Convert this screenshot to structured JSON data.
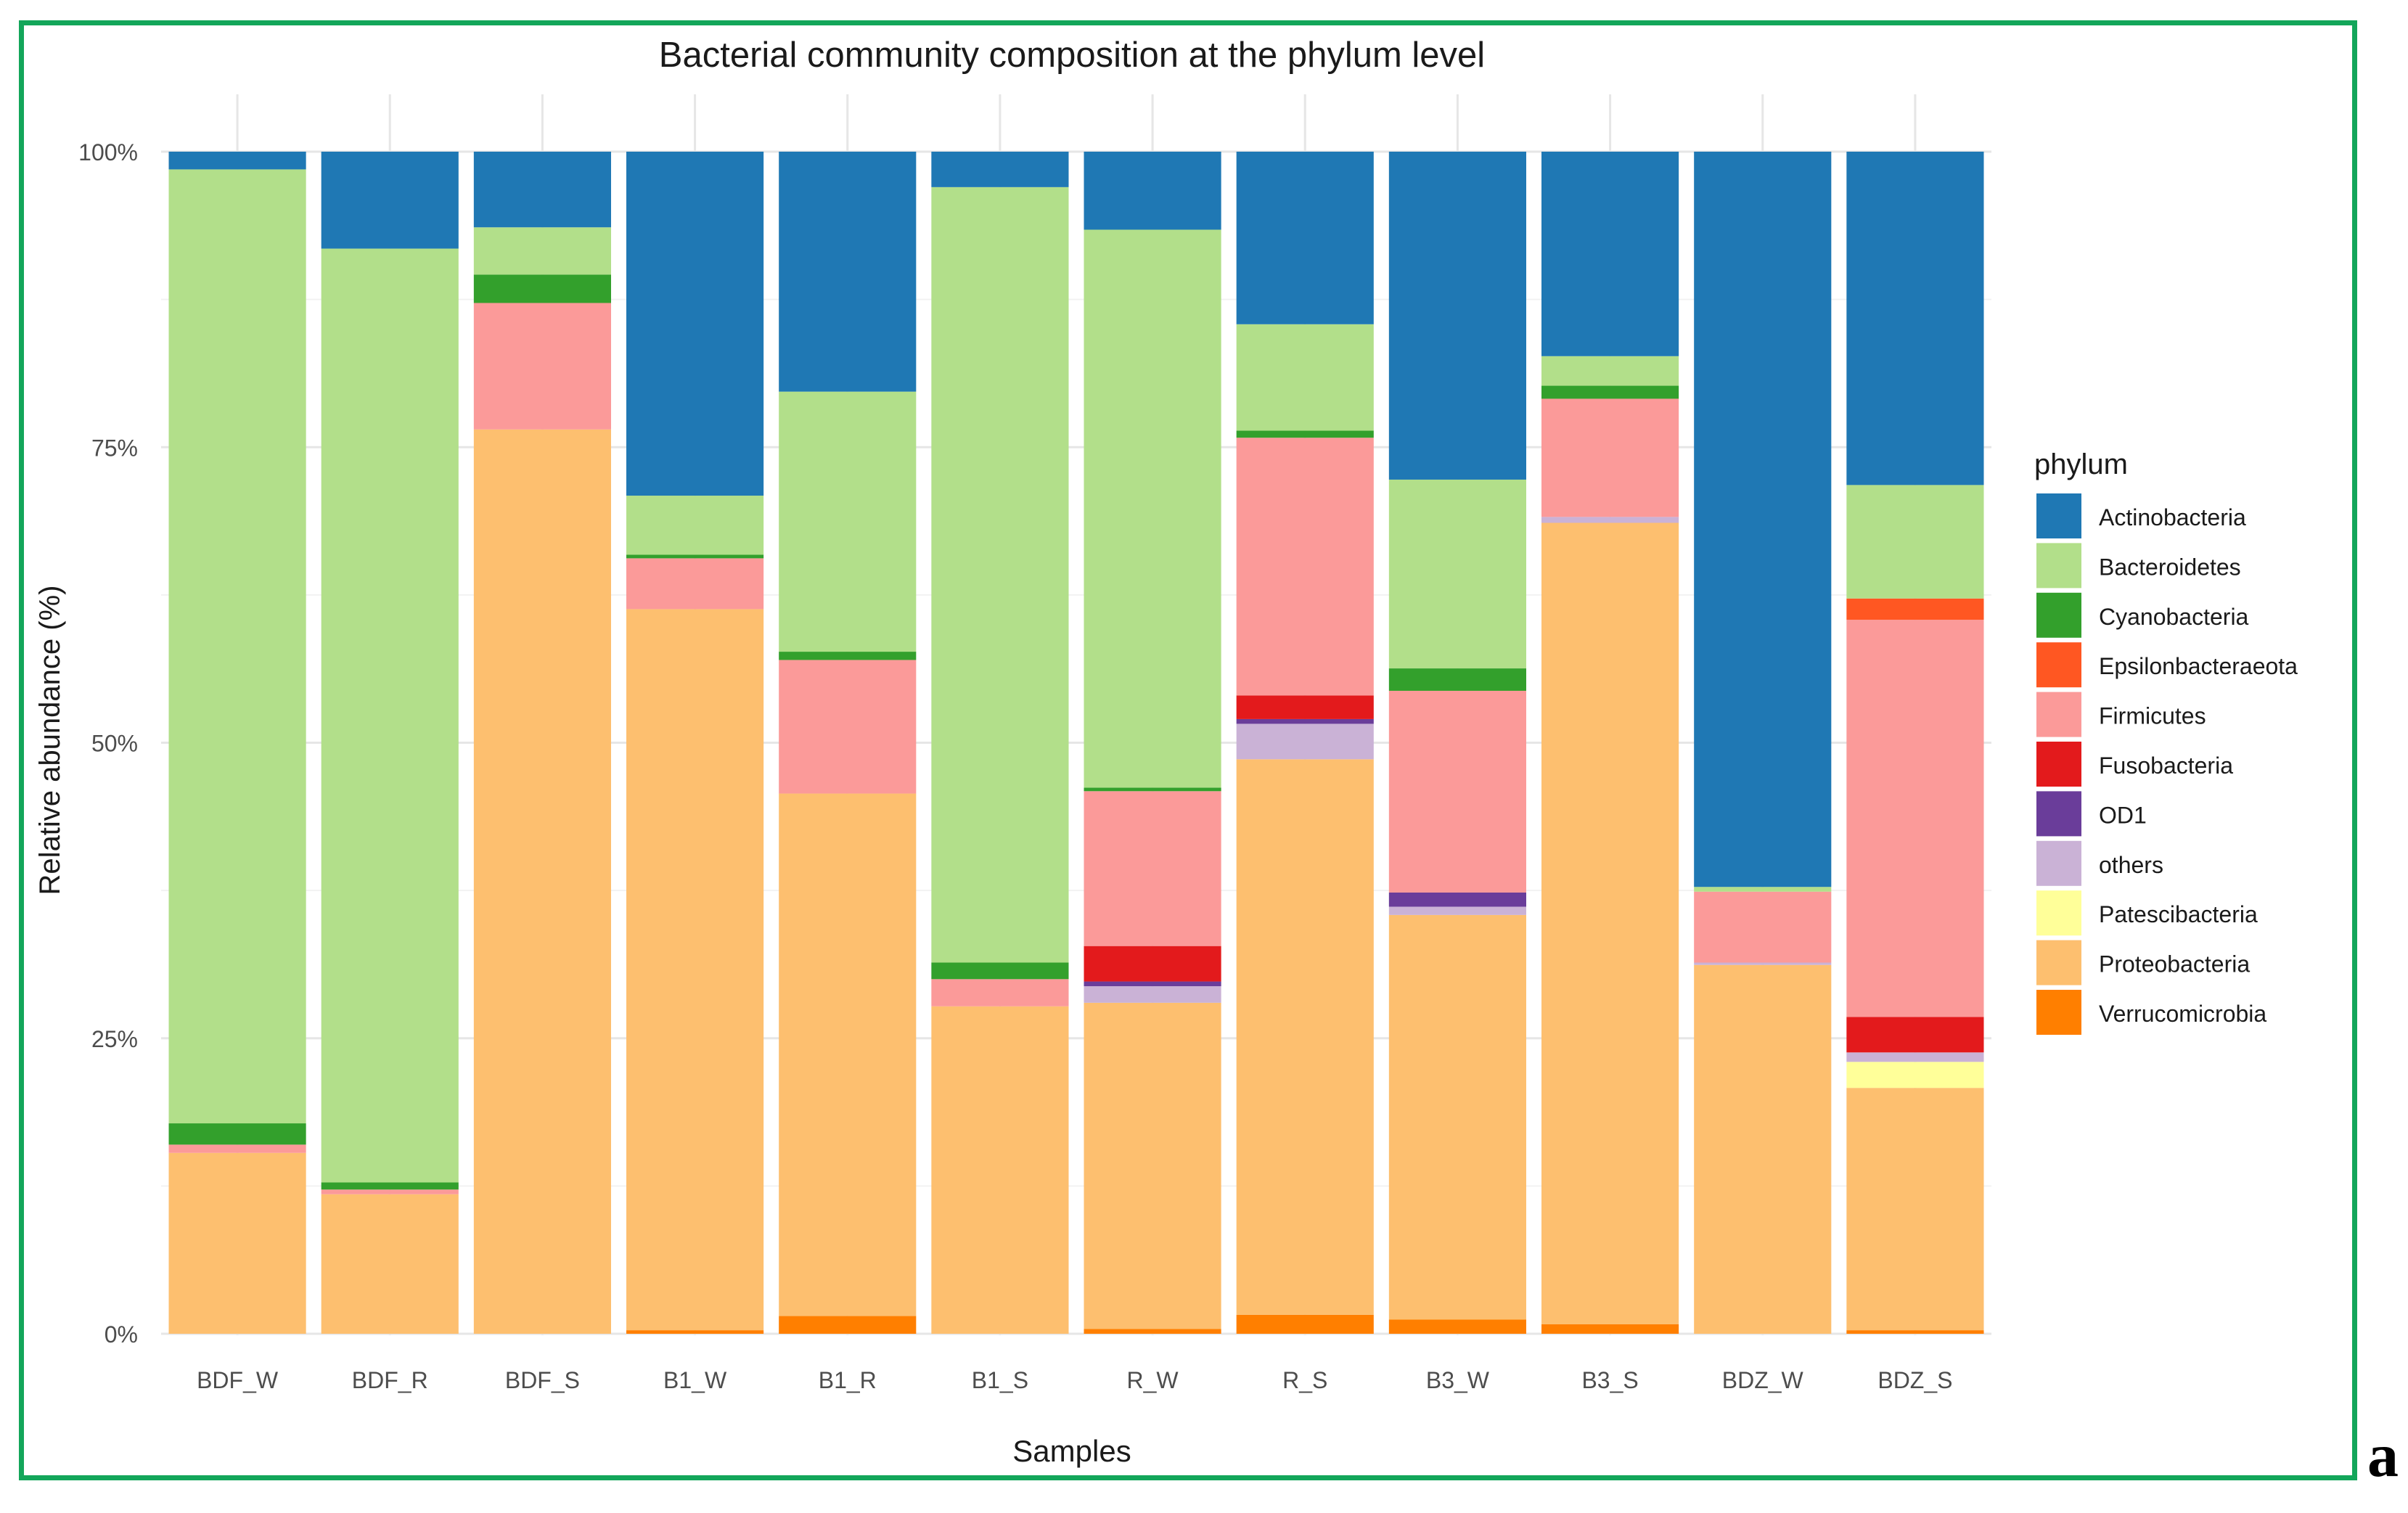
{
  "figure_label": "a",
  "chart_data": {
    "type": "bar",
    "stacked": true,
    "title": "Bacterial community composition at the phylum level",
    "xlabel": "Samples",
    "ylabel": "Relative abundance (%)",
    "ylim": [
      0,
      100
    ],
    "y_ticks": [
      0,
      25,
      50,
      75,
      100
    ],
    "y_tick_labels": [
      "0%",
      "25%",
      "50%",
      "75%",
      "100%"
    ],
    "legend": {
      "title": "phylum",
      "position": "right"
    },
    "categories": [
      "BDF_W",
      "BDF_R",
      "BDF_S",
      "B1_W",
      "B1_R",
      "B1_S",
      "R_W",
      "R_S",
      "B3_W",
      "B3_S",
      "BDZ_W",
      "BDZ_S"
    ],
    "series": [
      {
        "name": "Verrucomicrobia",
        "color": "#ff7f00",
        "values": [
          0,
          0,
          0,
          0.3,
          1.5,
          0,
          0.4,
          1.6,
          1.2,
          0.8,
          0,
          0.3
        ]
      },
      {
        "name": "Proteobacteria",
        "color": "#fdbf6f",
        "values": [
          15.3,
          11.8,
          76.5,
          61.0,
          44.2,
          27.7,
          27.6,
          47.0,
          34.3,
          67.8,
          31.2,
          20.5
        ]
      },
      {
        "name": "Patescibacteria",
        "color": "#ffff99",
        "values": [
          0,
          0,
          0,
          0,
          0,
          0,
          0,
          0,
          0,
          0,
          0,
          2.2
        ]
      },
      {
        "name": "others",
        "color": "#cab2d6",
        "values": [
          0,
          0,
          0,
          0,
          0,
          0,
          1.4,
          3.0,
          0.7,
          0.5,
          0.2,
          0.8
        ]
      },
      {
        "name": "OD1",
        "color": "#6a3d9a",
        "values": [
          0,
          0,
          0,
          0,
          0,
          0,
          0.4,
          0.4,
          1.2,
          0,
          0,
          0
        ]
      },
      {
        "name": "Fusobacteria",
        "color": "#e31a1c",
        "values": [
          0,
          0,
          0,
          0,
          0,
          0,
          3.0,
          2.0,
          0,
          0,
          0,
          3.0
        ]
      },
      {
        "name": "Firmicutes",
        "color": "#fb9a99",
        "values": [
          0.7,
          0.4,
          10.7,
          4.3,
          11.3,
          2.3,
          13.1,
          21.8,
          17.1,
          10.0,
          6.0,
          33.6
        ]
      },
      {
        "name": "Epsilonbacteraeota",
        "color": "#ff5722",
        "values": [
          0,
          0,
          0,
          0,
          0,
          0,
          0,
          0,
          0,
          0,
          0,
          1.8
        ]
      },
      {
        "name": "Cyanobacteria",
        "color": "#33a02c",
        "values": [
          1.8,
          0.6,
          2.4,
          0.3,
          0.7,
          1.4,
          0.3,
          0.6,
          1.9,
          1.1,
          0,
          0
        ]
      },
      {
        "name": "Bacteroidetes",
        "color": "#b2df8a",
        "values": [
          80.7,
          79.0,
          4.0,
          5.0,
          22.0,
          65.6,
          47.2,
          9.0,
          16.0,
          2.5,
          0.4,
          9.6
        ]
      },
      {
        "name": "Actinobacteria",
        "color": "#1f78b4",
        "values": [
          1.5,
          8.2,
          6.4,
          29.1,
          20.3,
          3.0,
          6.6,
          14.6,
          27.8,
          17.3,
          62.2,
          28.2
        ]
      }
    ],
    "legend_order": [
      "Actinobacteria",
      "Bacteroidetes",
      "Cyanobacteria",
      "Epsilonbacteraeota",
      "Firmicutes",
      "Fusobacteria",
      "OD1",
      "others",
      "Patescibacteria",
      "Proteobacteria",
      "Verrucomicrobia"
    ]
  }
}
